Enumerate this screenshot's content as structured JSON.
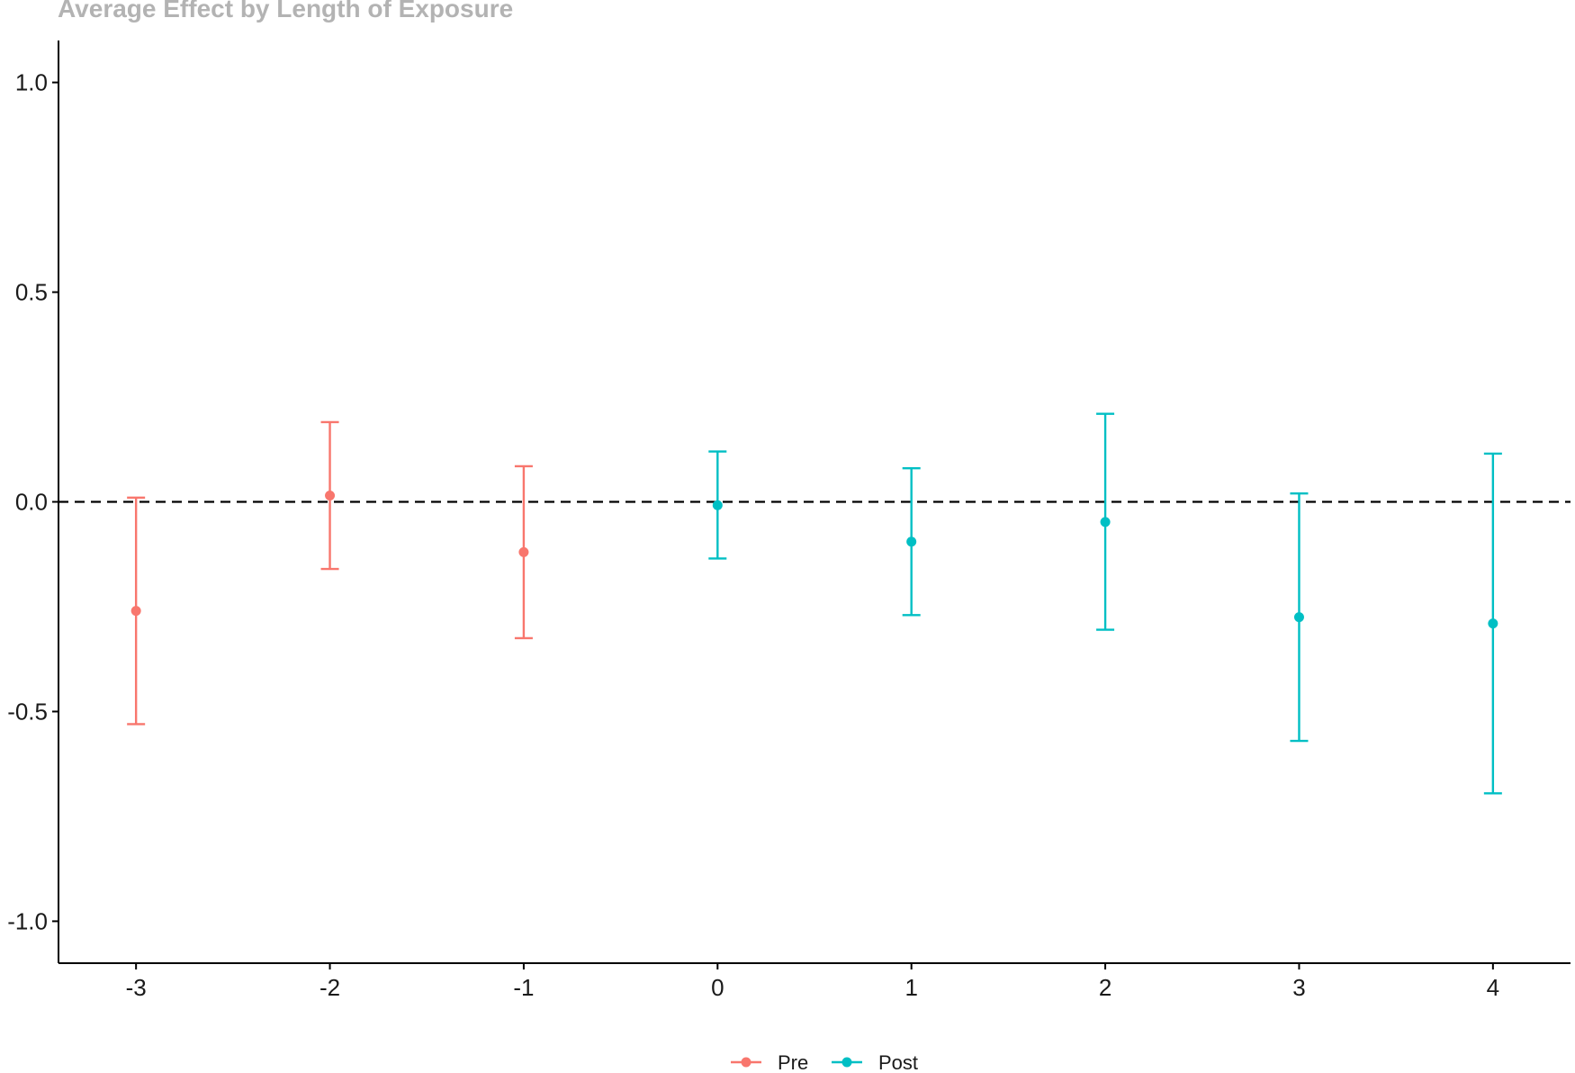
{
  "chart_data": {
    "type": "scatter",
    "title": "Average Effect by Length of Exposure",
    "xlabel": "",
    "ylabel": "",
    "x_ticks": [
      "-3",
      "-2",
      "-1",
      "0",
      "1",
      "2",
      "3",
      "4"
    ],
    "y_ticks": [
      "-1.0",
      "-0.5",
      "0.0",
      "0.5",
      "1.0"
    ],
    "xlim": [
      -3.4,
      4.4
    ],
    "ylim": [
      -1.1,
      1.1
    ],
    "reference_line": {
      "y": 0,
      "style": "dashed",
      "color": "#000000"
    },
    "grid": false,
    "legend_position": "bottom",
    "series": [
      {
        "name": "Pre",
        "color": "#F8766D",
        "points": [
          {
            "x": -3,
            "y": -0.26,
            "lower": -0.53,
            "upper": 0.01
          },
          {
            "x": -2,
            "y": 0.015,
            "lower": -0.16,
            "upper": 0.19
          },
          {
            "x": -1,
            "y": -0.12,
            "lower": -0.325,
            "upper": 0.085
          }
        ]
      },
      {
        "name": "Post",
        "color": "#00BFC4",
        "points": [
          {
            "x": 0,
            "y": -0.008,
            "lower": -0.135,
            "upper": 0.12
          },
          {
            "x": 1,
            "y": -0.095,
            "lower": -0.27,
            "upper": 0.08
          },
          {
            "x": 2,
            "y": -0.048,
            "lower": -0.305,
            "upper": 0.21
          },
          {
            "x": 3,
            "y": -0.275,
            "lower": -0.57,
            "upper": 0.02
          },
          {
            "x": 4,
            "y": -0.29,
            "lower": -0.695,
            "upper": 0.115
          }
        ]
      }
    ]
  }
}
